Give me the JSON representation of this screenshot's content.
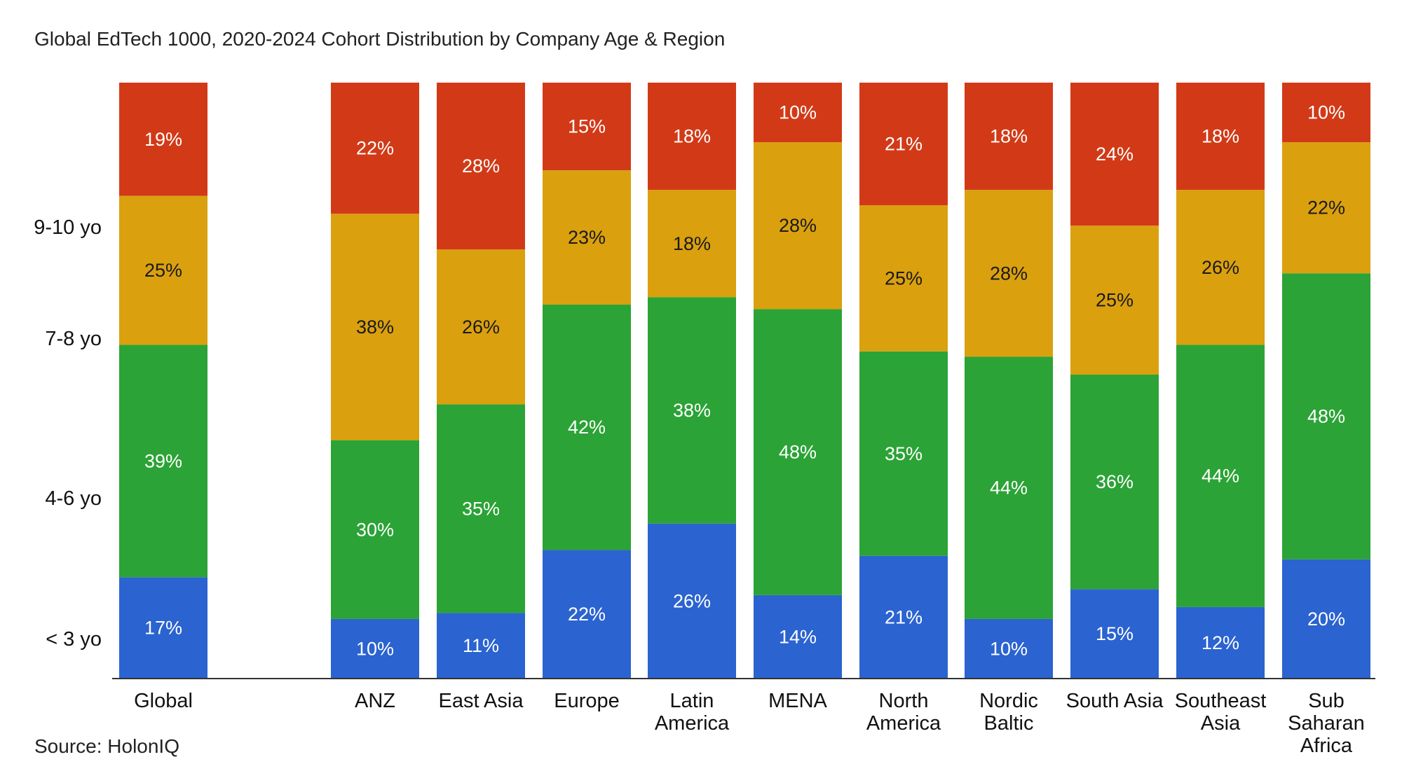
{
  "title": "Global EdTech 1000, 2020-2024 Cohort Distribution by Company Age & Region",
  "source": "Source: HolonIQ",
  "chart_data": {
    "type": "bar",
    "stacked": true,
    "normalized_percent": true,
    "categories": [
      "Global",
      "ANZ",
      "East Asia",
      "Europe",
      "Latin America",
      "MENA",
      "North America",
      "Nordic Baltic",
      "South Asia",
      "Southeast Asia",
      "Sub Saharan Africa"
    ],
    "category_lines": [
      [
        "Global"
      ],
      [
        "ANZ"
      ],
      [
        "East Asia"
      ],
      [
        "Europe"
      ],
      [
        "Latin",
        "America"
      ],
      [
        "MENA"
      ],
      [
        "North",
        "America"
      ],
      [
        "Nordic",
        "Baltic"
      ],
      [
        "South Asia"
      ],
      [
        "Southeast",
        "Asia"
      ],
      [
        "Sub",
        "Saharan",
        "Africa"
      ]
    ],
    "series": [
      {
        "name": "< 3 yo",
        "color": "#2b63d0",
        "label_color": "#ffffff",
        "values": [
          17,
          10,
          11,
          22,
          26,
          14,
          21,
          10,
          15,
          12,
          20
        ]
      },
      {
        "name": "4-6 yo",
        "color": "#2ba336",
        "label_color": "#ffffff",
        "values": [
          39,
          30,
          35,
          42,
          38,
          48,
          35,
          44,
          36,
          44,
          48
        ]
      },
      {
        "name": "7-8 yo",
        "color": "#daa00e",
        "label_color": "#1a1a1a",
        "values": [
          25,
          38,
          26,
          23,
          18,
          28,
          25,
          28,
          25,
          26,
          22
        ]
      },
      {
        "name": "9-10 yo",
        "color": "#d23a17",
        "label_color": "#ffffff",
        "values": [
          19,
          22,
          28,
          15,
          18,
          10,
          21,
          18,
          24,
          18,
          10
        ]
      }
    ],
    "ylim": [
      0,
      100
    ],
    "xlabel": "",
    "ylabel": "",
    "legend": "none",
    "grid": false
  }
}
